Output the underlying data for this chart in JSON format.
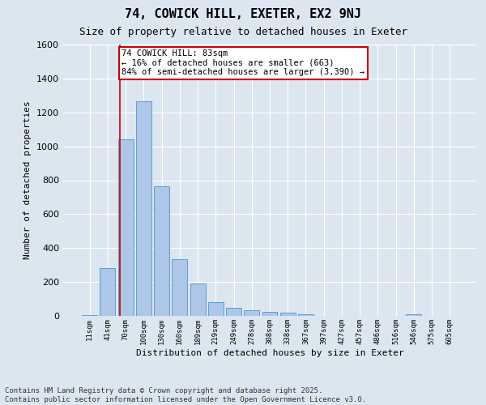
{
  "title1": "74, COWICK HILL, EXETER, EX2 9NJ",
  "title2": "Size of property relative to detached houses in Exeter",
  "xlabel": "Distribution of detached houses by size in Exeter",
  "ylabel": "Number of detached properties",
  "categories": [
    "11sqm",
    "41sqm",
    "70sqm",
    "100sqm",
    "130sqm",
    "160sqm",
    "189sqm",
    "219sqm",
    "249sqm",
    "278sqm",
    "308sqm",
    "338sqm",
    "367sqm",
    "397sqm",
    "427sqm",
    "457sqm",
    "486sqm",
    "516sqm",
    "546sqm",
    "575sqm",
    "605sqm"
  ],
  "values": [
    5,
    280,
    1040,
    1265,
    765,
    335,
    190,
    80,
    50,
    35,
    25,
    20,
    10,
    0,
    0,
    0,
    0,
    0,
    10,
    0,
    0
  ],
  "bar_color": "#aec6e8",
  "bar_edge_color": "#5a9fd4",
  "vline_x": 1.69,
  "vline_color": "#cc0000",
  "annotation_line1": "74 COWICK HILL: 83sqm",
  "annotation_line2": "← 16% of detached houses are smaller (663)",
  "annotation_line3": "84% of semi-detached houses are larger (3,390) →",
  "annotation_box_color": "#cc0000",
  "ylim": [
    0,
    1600
  ],
  "yticks": [
    0,
    200,
    400,
    600,
    800,
    1000,
    1200,
    1400,
    1600
  ],
  "background_color": "#dce6f1",
  "fig_background_color": "#dce6f1",
  "grid_color": "#ffffff",
  "footer": "Contains HM Land Registry data © Crown copyright and database right 2025.\nContains public sector information licensed under the Open Government Licence v3.0.",
  "title1_fontsize": 11,
  "title2_fontsize": 9,
  "annotation_fontsize": 7.5,
  "footer_fontsize": 6.5,
  "ylabel_fontsize": 8,
  "xlabel_fontsize": 8
}
